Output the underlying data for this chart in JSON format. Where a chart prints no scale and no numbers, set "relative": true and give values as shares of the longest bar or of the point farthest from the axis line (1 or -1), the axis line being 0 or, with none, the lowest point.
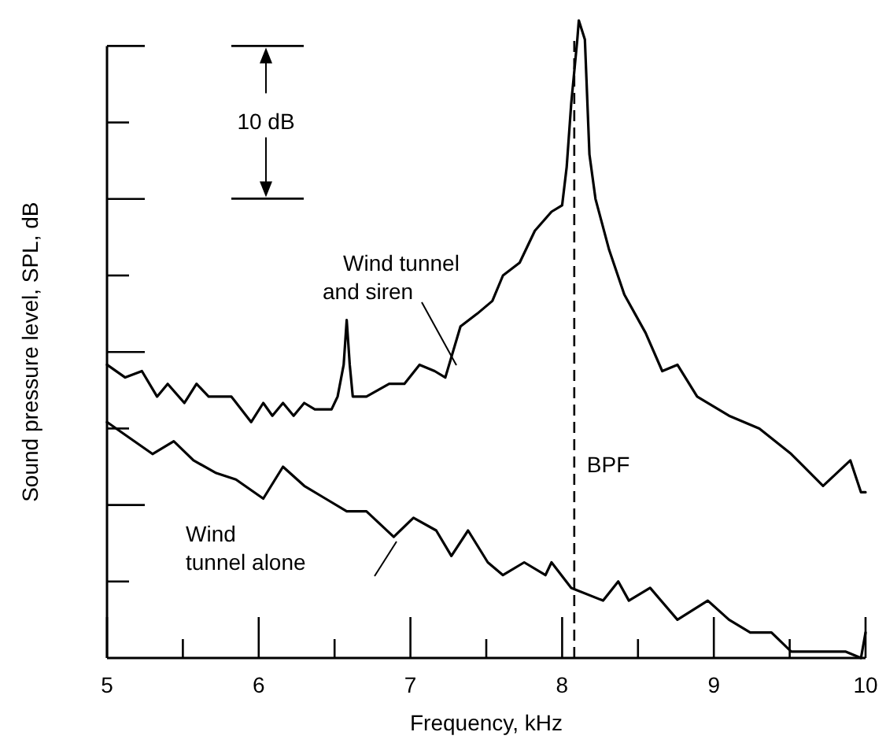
{
  "chart_data": {
    "type": "line",
    "xlabel": "Frequency, kHz",
    "ylabel": "Sound pressure level, SPL, dB",
    "relative": true,
    "legend": false,
    "grid": false,
    "marker": "none",
    "line_style": "solid",
    "xlim": [
      5,
      10
    ],
    "xticks": [
      5,
      {
        "value": 5.5,
        "label": null
      },
      6,
      {
        "value": 6.5,
        "label": null
      },
      7,
      {
        "value": 7.5,
        "label": null
      },
      8,
      {
        "value": 8.5,
        "label": null
      },
      9,
      {
        "value": 9.5,
        "label": null
      },
      10
    ],
    "annotations": [
      "10 dB"
    ],
    "ref_lines": [
      {
        "axis": "x",
        "value": 8.08,
        "label": "BPF",
        "color": "#000000",
        "line_style": "dashed"
      }
    ],
    "series": [
      {
        "name": "Wind tunnel and siren",
        "color": "#000000",
        "x": [
          5.0,
          5.12,
          5.23,
          5.33,
          5.4,
          5.51,
          5.59,
          5.67,
          5.82,
          5.95,
          6.03,
          6.09,
          6.16,
          6.23,
          6.3,
          6.37,
          6.48,
          6.52,
          6.56,
          6.58,
          6.6,
          6.62,
          6.71,
          6.86,
          6.96,
          7.06,
          7.16,
          7.23,
          7.33,
          7.44,
          7.54,
          7.61,
          7.72,
          7.82,
          7.93,
          8.0,
          8.03,
          8.06,
          8.1,
          8.11,
          8.15,
          8.18,
          8.22,
          8.31,
          8.41,
          8.55,
          8.66,
          8.76,
          8.89,
          9.1,
          9.3,
          9.51,
          9.72,
          9.9,
          9.97,
          10.0
        ],
        "values": [
          0.46,
          0.44,
          0.45,
          0.41,
          0.43,
          0.4,
          0.43,
          0.41,
          0.41,
          0.37,
          0.4,
          0.38,
          0.4,
          0.38,
          0.4,
          0.39,
          0.39,
          0.41,
          0.46,
          0.53,
          0.46,
          0.41,
          0.41,
          0.43,
          0.43,
          0.46,
          0.45,
          0.44,
          0.52,
          0.54,
          0.56,
          0.6,
          0.62,
          0.67,
          0.7,
          0.71,
          0.77,
          0.87,
          0.97,
          1.0,
          0.97,
          0.79,
          0.72,
          0.64,
          0.57,
          0.51,
          0.45,
          0.46,
          0.41,
          0.38,
          0.36,
          0.32,
          0.27,
          0.31,
          0.26,
          0.26
        ]
      },
      {
        "name": "Wind tunnel alone",
        "color": "#000000",
        "x": [
          5.0,
          5.12,
          5.3,
          5.44,
          5.57,
          5.72,
          5.85,
          6.03,
          6.16,
          6.3,
          6.44,
          6.58,
          6.71,
          6.89,
          7.02,
          7.17,
          7.27,
          7.38,
          7.51,
          7.61,
          7.75,
          7.89,
          7.93,
          8.06,
          8.27,
          8.37,
          8.44,
          8.58,
          8.76,
          8.96,
          9.1,
          9.24,
          9.38,
          9.51,
          9.66,
          9.76,
          9.87,
          9.97,
          10.0
        ],
        "values": [
          0.37,
          0.35,
          0.32,
          0.34,
          0.31,
          0.29,
          0.28,
          0.25,
          0.3,
          0.27,
          0.25,
          0.23,
          0.23,
          0.19,
          0.22,
          0.2,
          0.16,
          0.2,
          0.15,
          0.13,
          0.15,
          0.13,
          0.15,
          0.11,
          0.09,
          0.12,
          0.09,
          0.11,
          0.06,
          0.09,
          0.06,
          0.04,
          0.04,
          0.01,
          0.01,
          0.01,
          0.01,
          0.0,
          0.04
        ]
      }
    ]
  }
}
